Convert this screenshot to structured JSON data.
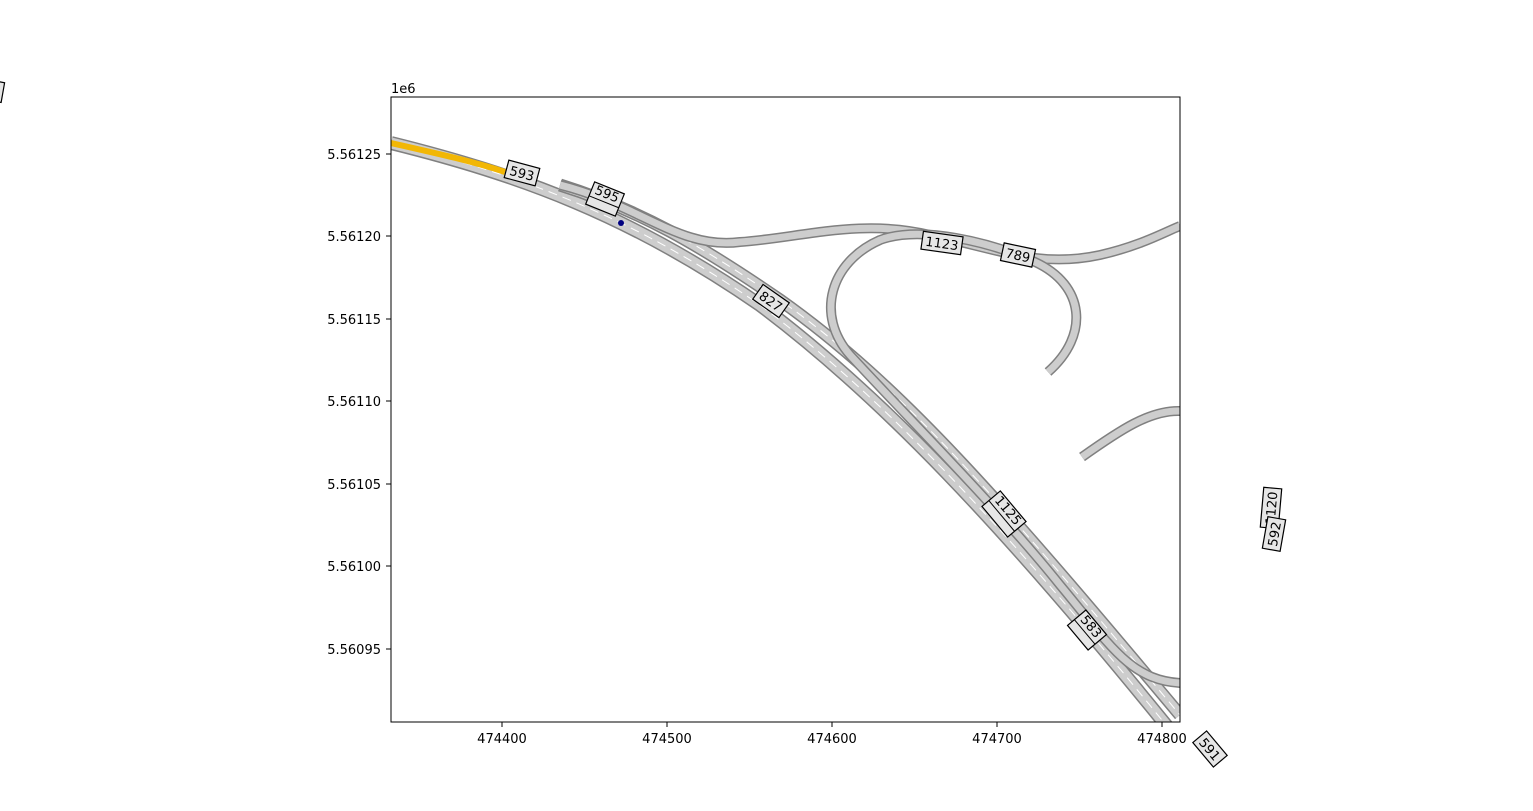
{
  "plot": {
    "offset_text": "1e6",
    "x_ticks": [
      "474400",
      "474500",
      "474600",
      "474700",
      "474800"
    ],
    "y_ticks": [
      "5.56125",
      "5.56120",
      "5.56115",
      "5.56110",
      "5.56105",
      "5.56100",
      "5.56095"
    ],
    "background": "#ffffff",
    "frame_color": "#000000"
  },
  "map": {
    "road_fill": "#cdcdcd",
    "road_edge": "#808080",
    "highlight_color": "#f2b705",
    "marker_color": "#000080",
    "lane_divider_color": "#ffffff",
    "road_labels": [
      "593",
      "595",
      "1123",
      "789",
      "827",
      "1125",
      "583",
      "591",
      "1120",
      "592"
    ],
    "highlighted_road": "593"
  }
}
